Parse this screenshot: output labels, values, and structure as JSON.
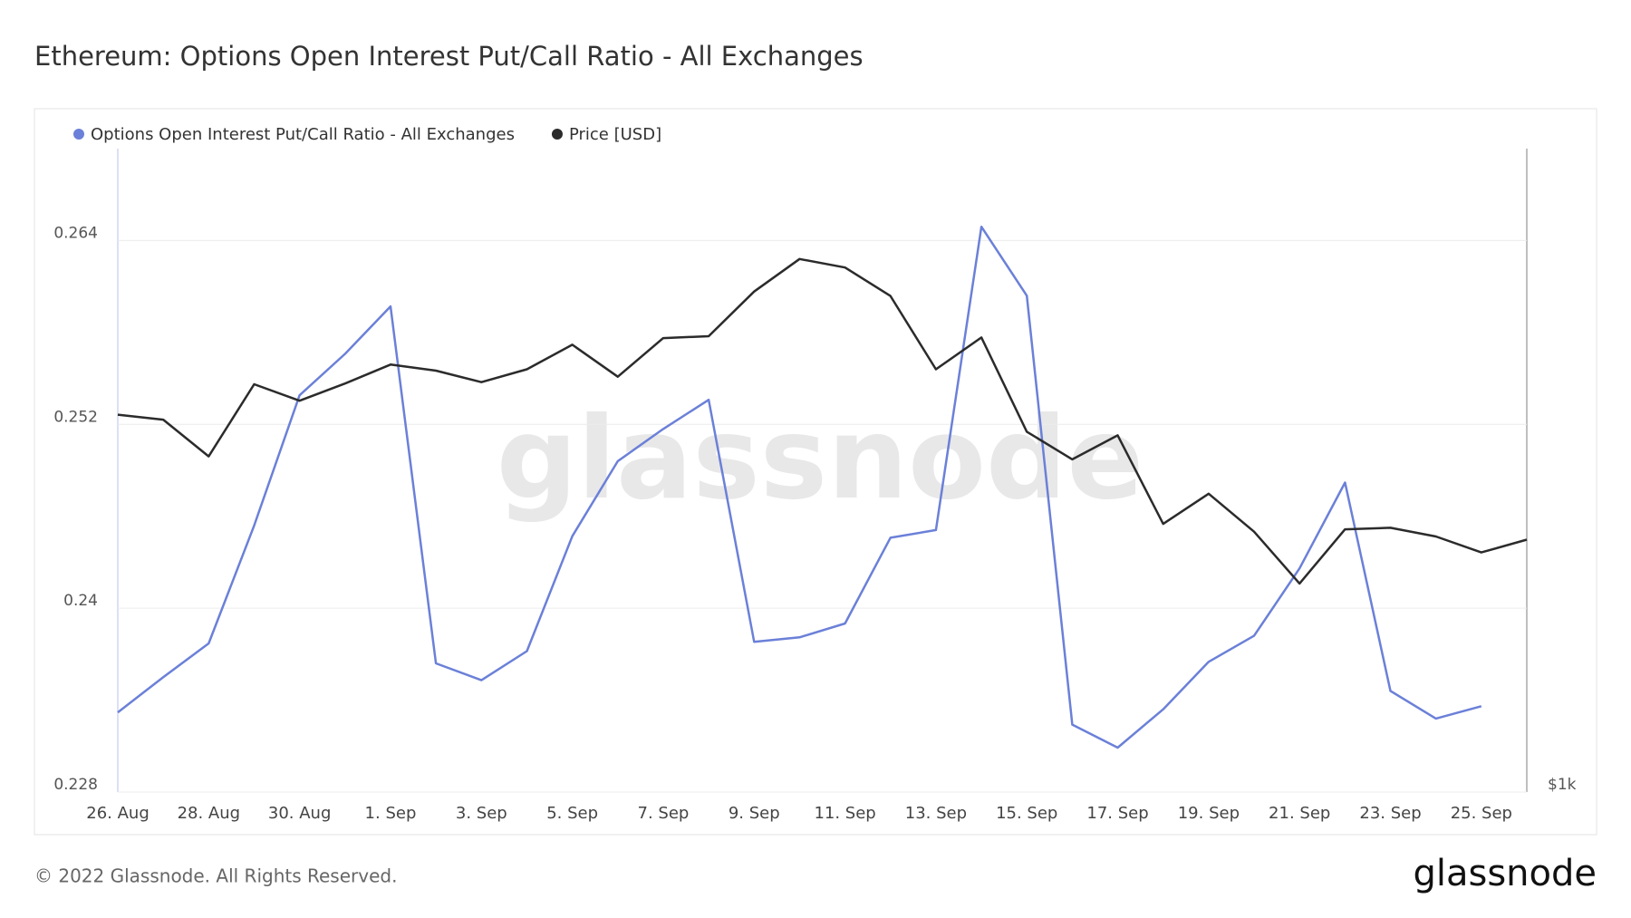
{
  "chart_data": {
    "type": "line",
    "title": "Ethereum: Options Open Interest Put/Call Ratio - All Exchanges",
    "categories": [
      "26. Aug",
      null,
      "28. Aug",
      null,
      "30. Aug",
      null,
      "1. Sep",
      null,
      "3. Sep",
      null,
      "5. Sep",
      null,
      "7. Sep",
      null,
      "9. Sep",
      null,
      "11. Sep",
      null,
      "13. Sep",
      null,
      "15. Sep",
      null,
      "17. Sep",
      null,
      "19. Sep",
      null,
      "21. Sep",
      null,
      "23. Sep",
      null,
      "25. Sep",
      null
    ],
    "series": [
      {
        "name": "Options Open Interest Put/Call Ratio - All Exchanges",
        "color": "#6b80d8",
        "values": [
          0.2332,
          0.2355,
          0.2377,
          0.2454,
          0.2539,
          0.2566,
          0.2597,
          0.2364,
          0.2353,
          0.2372,
          0.2447,
          0.2496,
          0.2517,
          0.2536,
          0.2378,
          0.2381,
          0.239,
          0.2446,
          0.2451,
          0.2649,
          0.2604,
          0.2324,
          0.2309,
          0.2334,
          0.2365,
          0.2382,
          0.2426,
          0.2482,
          0.2346,
          0.2328,
          0.2336,
          null
        ]
      },
      {
        "name": "Price [USD]",
        "color": "#2b2b2b",
        "axis": "y2",
        "values": [
          1448,
          1441,
          1390,
          1492,
          1468,
          1493,
          1521,
          1512,
          1495,
          1514,
          1551,
          1503,
          1561,
          1564,
          1634,
          1687,
          1673,
          1627,
          1514,
          1562,
          1424,
          1386,
          1419,
          1301,
          1340,
          1291,
          1227,
          1294,
          1296,
          1285,
          1265,
          1281
        ]
      }
    ],
    "ylim": [
      0.228,
      0.27
    ],
    "yticks": [
      0.228,
      0.24,
      0.252,
      0.264
    ],
    "y2lim": [
      1000,
      1880
    ],
    "y2log": true,
    "y2ticks": [
      {
        "value": 1000,
        "label": "$1k"
      }
    ],
    "grid": true,
    "legend": "top-left"
  },
  "watermark": "glassnode",
  "footer": {
    "copyright": "© 2022 Glassnode. All Rights Reserved.",
    "logo": "glassnode"
  }
}
